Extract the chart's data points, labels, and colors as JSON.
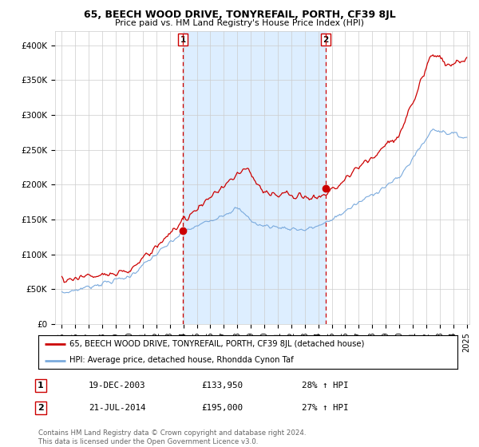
{
  "title": "65, BEECH WOOD DRIVE, TONYREFAIL, PORTH, CF39 8JL",
  "subtitle": "Price paid vs. HM Land Registry's House Price Index (HPI)",
  "legend_line1": "65, BEECH WOOD DRIVE, TONYREFAIL, PORTH, CF39 8JL (detached house)",
  "legend_line2": "HPI: Average price, detached house, Rhondda Cynon Taf",
  "footnote": "Contains HM Land Registry data © Crown copyright and database right 2024.\nThis data is licensed under the Open Government Licence v3.0.",
  "sale1_label": "1",
  "sale1_date": "19-DEC-2003",
  "sale1_price": "£133,950",
  "sale1_hpi": "28% ↑ HPI",
  "sale2_label": "2",
  "sale2_date": "21-JUL-2014",
  "sale2_price": "£195,000",
  "sale2_hpi": "27% ↑ HPI",
  "red_line_color": "#cc0000",
  "blue_line_color": "#7aaadd",
  "shade_color": "#ddeeff",
  "background_color": "#ffffff",
  "grid_color": "#cccccc",
  "marker1_x": 2003.97,
  "marker2_x": 2014.55,
  "marker1_y": 133950,
  "marker2_y": 195000,
  "ylim_min": 0,
  "ylim_max": 420000,
  "xlim_min": 1994.5,
  "xlim_max": 2025.2,
  "yticks": [
    0,
    50000,
    100000,
    150000,
    200000,
    250000,
    300000,
    350000,
    400000
  ],
  "ytick_labels": [
    "£0",
    "£50K",
    "£100K",
    "£150K",
    "£200K",
    "£250K",
    "£300K",
    "£350K",
    "£400K"
  ],
  "xticks": [
    1995,
    1996,
    1997,
    1998,
    1999,
    2000,
    2001,
    2002,
    2003,
    2004,
    2005,
    2006,
    2007,
    2008,
    2009,
    2010,
    2011,
    2012,
    2013,
    2014,
    2015,
    2016,
    2017,
    2018,
    2019,
    2020,
    2021,
    2022,
    2023,
    2024,
    2025
  ]
}
